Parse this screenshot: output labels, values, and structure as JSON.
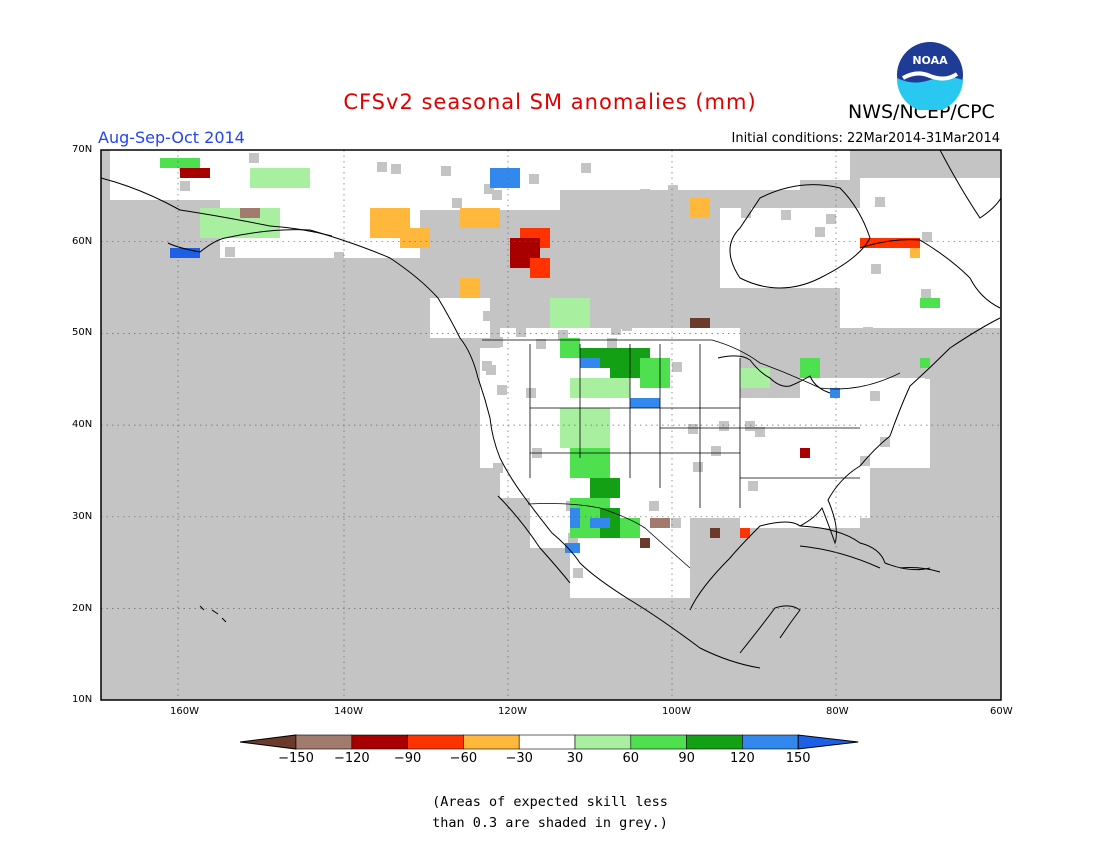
{
  "header": {
    "title": "CFSv2 seasonal SM anomalies (mm)",
    "season": "Aug-Sep-Oct 2014",
    "initial_conditions": "Initial conditions: 22Mar2014-31Mar2014",
    "organization": "NWS/NCEP/CPC",
    "logo_text": "NOAA"
  },
  "map": {
    "lat_labels": [
      "70N",
      "60N",
      "50N",
      "40N",
      "30N",
      "20N",
      "10N"
    ],
    "lon_labels": [
      "160W",
      "140W",
      "120W",
      "100W",
      "80W",
      "60W"
    ],
    "land_grey": "#c4c4c4",
    "frame": "#000000"
  },
  "legend": {
    "labels": [
      "-150",
      "-120",
      "-90",
      "-60",
      "-30",
      "30",
      "60",
      "90",
      "120",
      "150"
    ],
    "colors": [
      "#6b3a2a",
      "#a37a6e",
      "#a80000",
      "#ff3300",
      "#ffb83c",
      "#ffffff",
      "#a8f0a0",
      "#4ee04e",
      "#14a014",
      "#3388ee",
      "#1c60e8"
    ]
  },
  "note": {
    "line1": "(Areas of expected skill less",
    "line2": "than 0.3 are shaded in grey.)"
  }
}
